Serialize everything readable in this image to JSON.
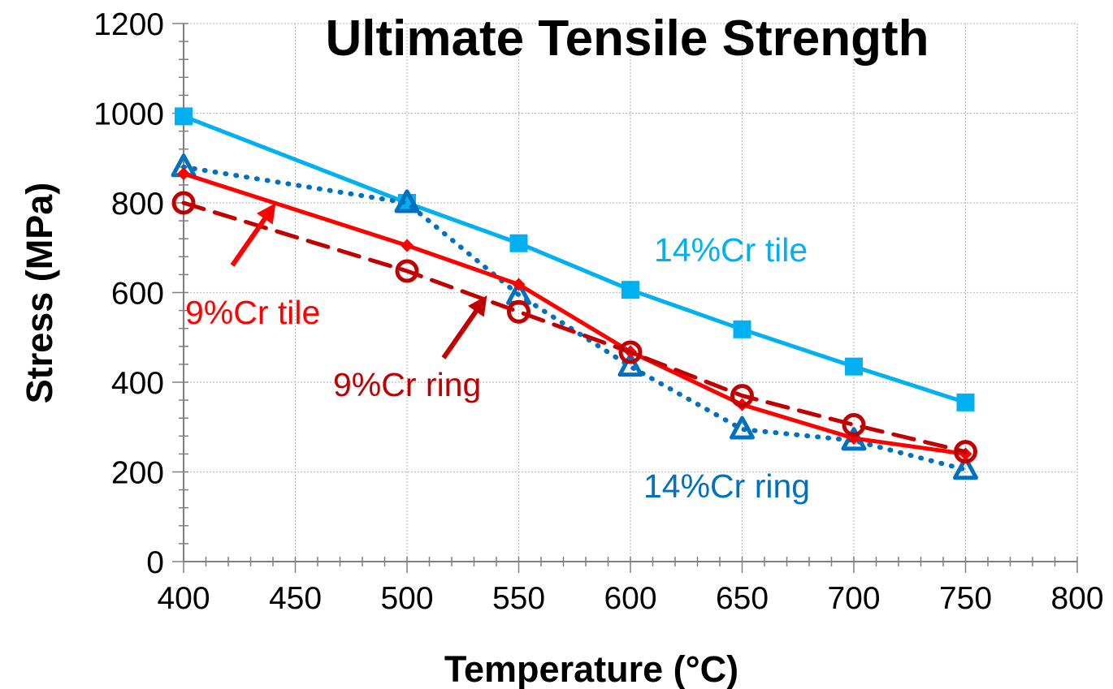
{
  "chart_data": {
    "type": "line",
    "title": "Ultimate Tensile Strength",
    "xlabel": "Temperature (°C)",
    "ylabel": "Stress (MPa)",
    "xlim": [
      400,
      800
    ],
    "ylim": [
      0,
      1200
    ],
    "x_ticks": [
      400,
      450,
      500,
      550,
      600,
      650,
      700,
      750,
      800
    ],
    "y_ticks": [
      0,
      200,
      400,
      600,
      800,
      1000,
      1200
    ],
    "x_tick_labels": [
      "400",
      "450",
      "500",
      "550",
      "600",
      "650",
      "700",
      "750",
      "800"
    ],
    "y_tick_labels": [
      "0",
      "200",
      "400",
      "600",
      "800",
      "1000",
      "1200"
    ],
    "grid": true,
    "series": [
      {
        "name": "14%Cr tile",
        "color": "#00B0F0",
        "line_style": "solid",
        "marker": "square",
        "x": [
          400,
          500,
          550,
          600,
          650,
          700,
          750
        ],
        "y": [
          993,
          800,
          710,
          606,
          518,
          435,
          355
        ]
      },
      {
        "name": "14%Cr ring",
        "color": "#0070C0",
        "line_style": "dotted",
        "marker": "triangle",
        "x": [
          400,
          500,
          550,
          600,
          650,
          700,
          750
        ],
        "y": [
          880,
          800,
          595,
          435,
          295,
          270,
          205
        ]
      },
      {
        "name": "9%Cr tile",
        "color": "#FF0000",
        "line_style": "solid",
        "marker": "diamond",
        "x": [
          400,
          500,
          550,
          600,
          650,
          700,
          750
        ],
        "y": [
          865,
          705,
          618,
          468,
          350,
          275,
          240
        ]
      },
      {
        "name": "9%Cr ring",
        "color": "#C00000",
        "line_style": "dashed",
        "marker": "circle",
        "x": [
          400,
          500,
          550,
          600,
          650,
          700,
          750
        ],
        "y": [
          800,
          648,
          557,
          467,
          370,
          305,
          245
        ]
      }
    ],
    "annotations": [
      {
        "text": "14%Cr tile",
        "color": "#00B0F0"
      },
      {
        "text": "9%Cr tile",
        "color": "#FF0000"
      },
      {
        "text": "9%Cr ring",
        "color": "#C00000"
      },
      {
        "text": "14%Cr ring",
        "color": "#0070C0"
      }
    ]
  }
}
